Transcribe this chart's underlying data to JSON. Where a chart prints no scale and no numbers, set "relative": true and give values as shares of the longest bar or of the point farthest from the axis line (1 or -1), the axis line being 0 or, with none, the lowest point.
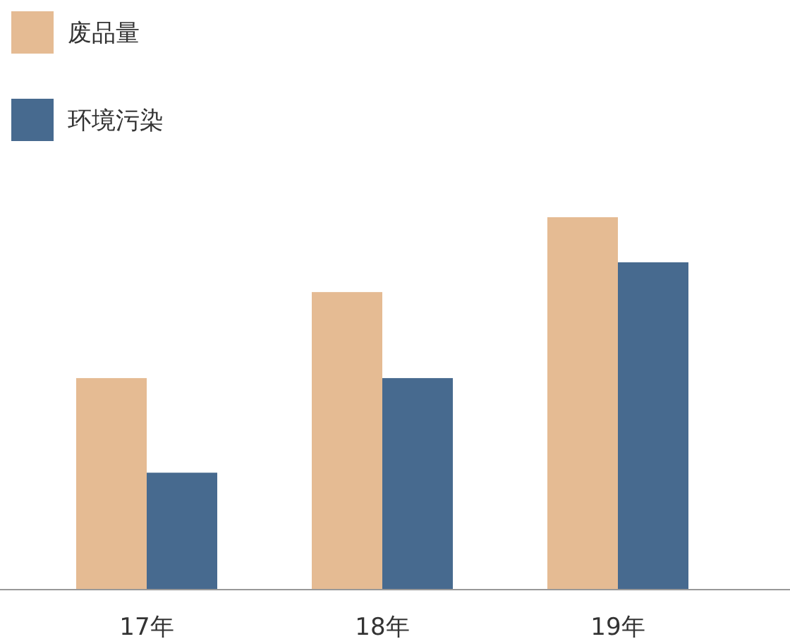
{
  "chart_data": {
    "type": "bar",
    "relative": true,
    "categories": [
      "17年",
      "18年",
      "19年"
    ],
    "series": [
      {
        "name": "废品量",
        "color": "#e5bb93",
        "values": [
          0.568,
          0.799,
          1
        ]
      },
      {
        "name": "环境污染",
        "color": "#476a8f",
        "values": [
          0.314,
          0.568,
          0.879
        ]
      }
    ],
    "legend": "top left"
  }
}
